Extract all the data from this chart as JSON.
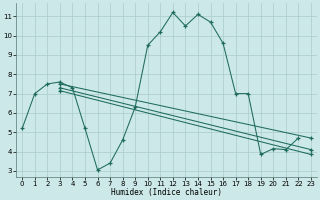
{
  "xlabel": "Humidex (Indice chaleur)",
  "background_color": "#cce8e8",
  "line_color": "#1e6b5e",
  "grid_color": "#aacccc",
  "xlim": [
    -0.5,
    23.5
  ],
  "ylim": [
    2.7,
    11.7
  ],
  "xticks": [
    0,
    1,
    2,
    3,
    4,
    5,
    6,
    7,
    8,
    9,
    10,
    11,
    12,
    13,
    14,
    15,
    16,
    17,
    18,
    19,
    20,
    21,
    22,
    23
  ],
  "yticks": [
    3,
    4,
    5,
    6,
    7,
    8,
    9,
    10,
    11
  ],
  "series": [
    {
      "x": [
        0,
        1,
        2,
        3,
        4,
        5,
        6,
        7,
        8,
        9,
        10,
        11,
        12,
        13,
        14,
        15,
        16,
        17,
        18,
        19,
        20,
        21,
        22
      ],
      "y": [
        5.2,
        7.0,
        7.5,
        7.6,
        7.3,
        5.2,
        3.05,
        3.4,
        4.6,
        6.3,
        9.5,
        10.2,
        11.2,
        10.5,
        11.1,
        10.7,
        9.6,
        7.0,
        7.0,
        3.85,
        4.15,
        4.1,
        4.7
      ]
    },
    {
      "x": [
        3,
        23
      ],
      "y": [
        7.5,
        4.7
      ]
    },
    {
      "x": [
        3,
        23
      ],
      "y": [
        7.3,
        4.1
      ]
    },
    {
      "x": [
        3,
        23
      ],
      "y": [
        7.15,
        3.85
      ]
    }
  ]
}
